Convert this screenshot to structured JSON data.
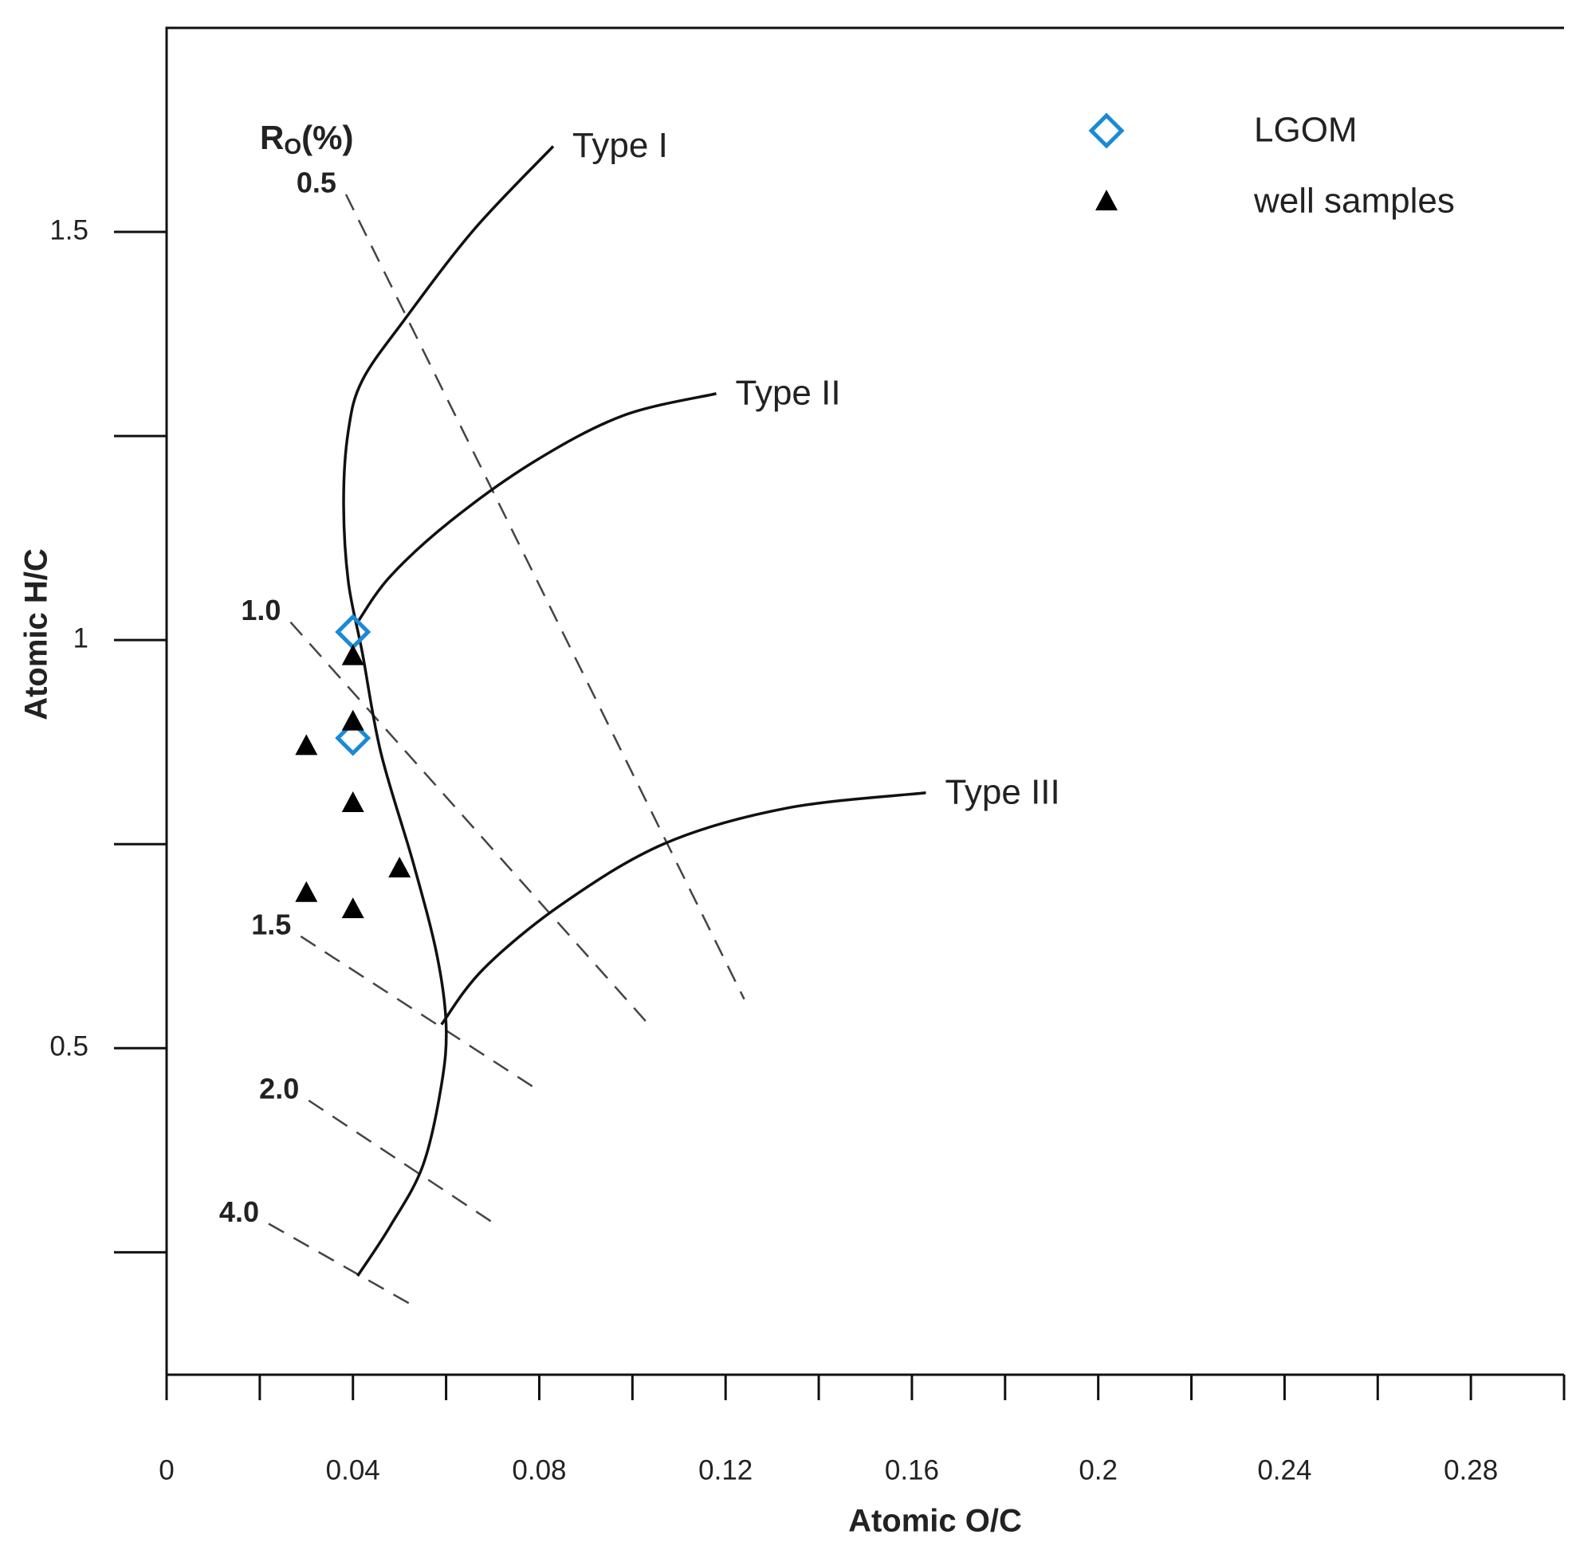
{
  "chart_data": {
    "type": "scatter",
    "xlabel": "Atomic O/C",
    "ylabel": "Atomic H/C",
    "xlim": [
      0,
      0.3
    ],
    "ylim": [
      0.1,
      1.75
    ],
    "xticks": [
      0,
      0.04,
      0.08,
      0.12,
      0.16,
      0.2,
      0.24,
      0.28
    ],
    "xminorticks": [
      0.02,
      0.06,
      0.1,
      0.14,
      0.18,
      0.22,
      0.26,
      0.3
    ],
    "yticks": [
      0.5,
      1,
      1.5
    ],
    "yminorticks": [
      0.25,
      0.75,
      1.25
    ],
    "legend": "upper right",
    "series": [
      {
        "name": "LGOM",
        "color": "#1a8ad4",
        "marker": "diamond",
        "x": [
          0.04,
          0.04
        ],
        "values": [
          1.01,
          0.88
        ]
      },
      {
        "name": "well samples",
        "color": "#000000",
        "marker": "triangle",
        "x": [
          0.04,
          0.04,
          0.03,
          0.04,
          0.05,
          0.03,
          0.04
        ],
        "values": [
          0.98,
          0.9,
          0.87,
          0.8,
          0.72,
          0.69,
          0.67
        ]
      }
    ],
    "curves": [
      {
        "label": "Type I",
        "x": [
          0.083,
          0.066,
          0.051,
          0.042,
          0.039,
          0.038,
          0.039,
          0.042,
          0.046,
          0.053,
          0.058,
          0.06,
          0.059,
          0.055,
          0.048,
          0.041
        ],
        "y": [
          1.605,
          1.503,
          1.392,
          1.318,
          1.256,
          1.17,
          1.072,
          0.985,
          0.862,
          0.726,
          0.615,
          0.529,
          0.455,
          0.356,
          0.282,
          0.221
        ]
      },
      {
        "label": "Type II",
        "x": [
          0.041,
          0.048,
          0.061,
          0.079,
          0.098,
          0.118
        ],
        "y": [
          1.022,
          1.078,
          1.146,
          1.219,
          1.275,
          1.302
        ]
      },
      {
        "label": "Type III",
        "x": [
          0.059,
          0.068,
          0.085,
          0.107,
          0.133,
          0.163
        ],
        "y": [
          0.529,
          0.597,
          0.677,
          0.751,
          0.794,
          0.813
        ]
      }
    ],
    "iso_lines": {
      "title": {
        "main": "R",
        "sub": "O",
        "rest": "(%)"
      },
      "lines": [
        {
          "label": "0.5",
          "x": [
            0.0385,
            0.124
          ],
          "y": [
            1.546,
            0.56
          ]
        },
        {
          "label": "1.0",
          "x": [
            0.0266,
            0.1035
          ],
          "y": [
            1.022,
            0.529
          ]
        },
        {
          "label": "1.5",
          "x": [
            0.0288,
            0.0797
          ],
          "y": [
            0.637,
            0.449
          ]
        },
        {
          "label": "2.0",
          "x": [
            0.0305,
            0.0704
          ],
          "y": [
            0.436,
            0.285
          ]
        },
        {
          "label": "4.0",
          "x": [
            0.0219,
            0.0522
          ],
          "y": [
            0.285,
            0.187
          ]
        }
      ]
    }
  }
}
